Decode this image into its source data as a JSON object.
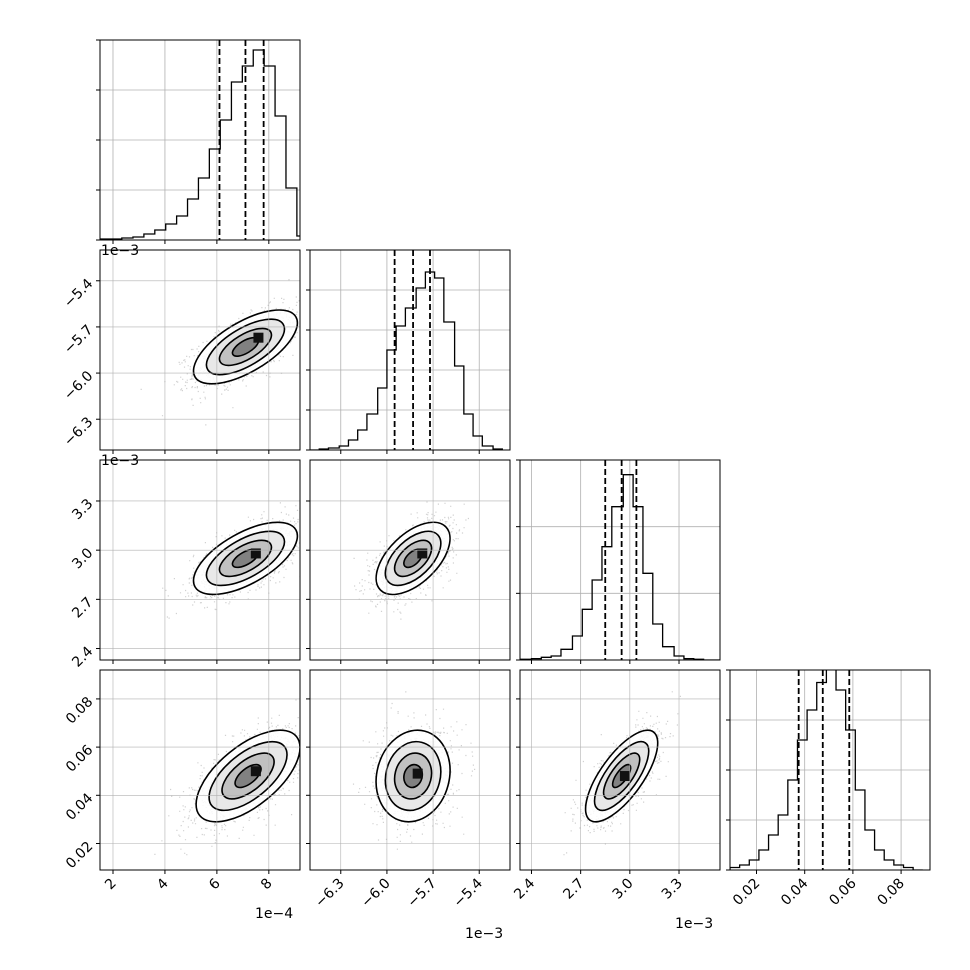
{
  "chart_data": {
    "type": "corner",
    "grid": true,
    "parameters": [
      {
        "range": [
          1.5,
          9.2
        ],
        "ticks": [
          2,
          4,
          6,
          8
        ],
        "tick_labels": [
          "2",
          "4",
          "6",
          "8"
        ],
        "offset_label": "1e−4",
        "scale": 0.0001
      },
      {
        "range": [
          -6.5,
          -5.2
        ],
        "ticks": [
          -6.3,
          -6.0,
          -5.7,
          -5.4
        ],
        "tick_labels": [
          "−6.3",
          "−6.0",
          "−5.7",
          "−5.4"
        ],
        "offset_label": "1e−3",
        "scale": 0.001
      },
      {
        "range": [
          2.33,
          3.55
        ],
        "ticks": [
          2.4,
          2.7,
          3.0,
          3.3
        ],
        "tick_labels": [
          "2.4",
          "2.7",
          "3.0",
          "3.3"
        ],
        "offset_label": "1e−3",
        "scale": 0.001
      },
      {
        "range": [
          0.009,
          0.092
        ],
        "ticks": [
          0.02,
          0.04,
          0.06,
          0.08
        ],
        "tick_labels": [
          "0.02",
          "0.04",
          "0.06",
          "0.08"
        ],
        "offset_label": "",
        "scale": 1
      }
    ],
    "histograms": [
      {
        "bin_edges": [
          1.5,
          1.92,
          2.34,
          2.77,
          3.19,
          3.61,
          4.03,
          4.45,
          4.87,
          5.29,
          5.71,
          6.13,
          6.56,
          6.98,
          7.4,
          7.82,
          8.24,
          8.66,
          9.08,
          9.5
        ],
        "counts": [
          1,
          1,
          2,
          3,
          6,
          10,
          16,
          24,
          41,
          62,
          91,
          120,
          158,
          174,
          190,
          174,
          124,
          52,
          4
        ],
        "quantiles": [
          6.1,
          7.1,
          7.8
        ],
        "yticks": [
          0,
          50,
          100,
          150,
          200
        ]
      },
      {
        "bin_edges": [
          -6.5,
          -6.44,
          -6.38,
          -6.31,
          -6.25,
          -6.19,
          -6.13,
          -6.06,
          -6.0,
          -5.94,
          -5.88,
          -5.81,
          -5.75,
          -5.69,
          -5.63,
          -5.56,
          -5.5,
          -5.44,
          -5.38,
          -5.31,
          -5.25
        ],
        "counts": [
          0,
          1,
          2,
          4,
          10,
          20,
          36,
          62,
          100,
          124,
          142,
          162,
          178,
          172,
          128,
          84,
          36,
          14,
          4,
          1
        ],
        "quantiles": [
          -5.95,
          -5.83,
          -5.72
        ],
        "yticks": [
          0,
          40,
          80,
          120,
          160,
          200
        ]
      },
      {
        "bin_edges": [
          2.33,
          2.4,
          2.46,
          2.52,
          2.58,
          2.65,
          2.71,
          2.77,
          2.83,
          2.89,
          2.96,
          3.02,
          3.08,
          3.14,
          3.2,
          3.27,
          3.33,
          3.39,
          3.45,
          3.51,
          3.55
        ],
        "counts": [
          1,
          2,
          4,
          6,
          16,
          36,
          76,
          120,
          170,
          230,
          278,
          230,
          130,
          54,
          20,
          6,
          2,
          1,
          0,
          0
        ],
        "quantiles": [
          2.85,
          2.95,
          3.04
        ],
        "yticks": [
          0,
          100,
          200,
          300
        ]
      },
      {
        "bin_edges": [
          0.009,
          0.013,
          0.017,
          0.021,
          0.025,
          0.029,
          0.033,
          0.037,
          0.041,
          0.045,
          0.049,
          0.053,
          0.057,
          0.061,
          0.065,
          0.069,
          0.073,
          0.077,
          0.081,
          0.085,
          0.089
        ],
        "counts": [
          1,
          2,
          4,
          8,
          14,
          22,
          36,
          52,
          64,
          75,
          82,
          72,
          56,
          32,
          16,
          8,
          4,
          2,
          1,
          0
        ],
        "quantiles": [
          0.0375,
          0.0475,
          0.0585
        ],
        "yticks": [
          0,
          20,
          40,
          60,
          80
        ]
      }
    ],
    "pairs": [
      {
        "x_param": 0,
        "y_param": 1,
        "mean": [
          7.1,
          -5.83
        ],
        "sd": [
          1.0,
          0.12
        ],
        "corr": 0.65,
        "peak": [
          7.6,
          -5.77
        ]
      },
      {
        "x_param": 0,
        "y_param": 2,
        "mean": [
          7.1,
          2.95
        ],
        "sd": [
          1.0,
          0.11
        ],
        "corr": 0.62,
        "peak": [
          7.5,
          2.98
        ]
      },
      {
        "x_param": 0,
        "y_param": 3,
        "mean": [
          7.2,
          0.048
        ],
        "sd": [
          1.0,
          0.0095
        ],
        "corr": 0.62,
        "peak": [
          7.5,
          0.05
        ]
      },
      {
        "x_param": 1,
        "y_param": 2,
        "mean": [
          -5.83,
          2.95
        ],
        "sd": [
          0.12,
          0.11
        ],
        "corr": 0.55,
        "peak": [
          -5.77,
          2.98
        ]
      },
      {
        "x_param": 1,
        "y_param": 3,
        "mean": [
          -5.83,
          0.048
        ],
        "sd": [
          0.12,
          0.0095
        ],
        "corr": 0.12,
        "peak": [
          -5.8,
          0.049
        ]
      },
      {
        "x_param": 2,
        "y_param": 3,
        "mean": [
          2.95,
          0.048
        ],
        "sd": [
          0.11,
          0.0095
        ],
        "corr": 0.72,
        "peak": [
          2.97,
          0.048
        ]
      }
    ],
    "contour_levels_sigma": [
      0.5,
      1.0,
      1.5,
      2.0
    ]
  }
}
